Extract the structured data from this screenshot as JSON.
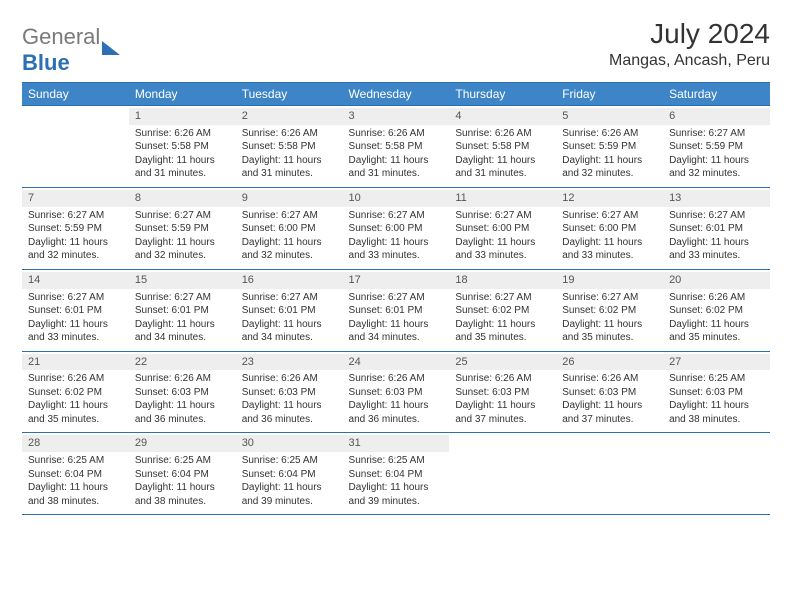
{
  "logo": {
    "part1": "General",
    "part2": "Blue"
  },
  "title": "July 2024",
  "location": "Mangas, Ancash, Peru",
  "colors": {
    "header_bg": "#3d85c6",
    "header_border": "#2d6fb5",
    "daynum_bg": "#eeeeee",
    "text": "#333333",
    "logo_gray": "#7a7a7a",
    "logo_blue": "#2d6fb5"
  },
  "weekdays": [
    "Sunday",
    "Monday",
    "Tuesday",
    "Wednesday",
    "Thursday",
    "Friday",
    "Saturday"
  ],
  "weeks": [
    [
      null,
      {
        "n": 1,
        "sr": "6:26 AM",
        "ss": "5:58 PM",
        "dl": "11 hours and 31 minutes."
      },
      {
        "n": 2,
        "sr": "6:26 AM",
        "ss": "5:58 PM",
        "dl": "11 hours and 31 minutes."
      },
      {
        "n": 3,
        "sr": "6:26 AM",
        "ss": "5:58 PM",
        "dl": "11 hours and 31 minutes."
      },
      {
        "n": 4,
        "sr": "6:26 AM",
        "ss": "5:58 PM",
        "dl": "11 hours and 31 minutes."
      },
      {
        "n": 5,
        "sr": "6:26 AM",
        "ss": "5:59 PM",
        "dl": "11 hours and 32 minutes."
      },
      {
        "n": 6,
        "sr": "6:27 AM",
        "ss": "5:59 PM",
        "dl": "11 hours and 32 minutes."
      }
    ],
    [
      {
        "n": 7,
        "sr": "6:27 AM",
        "ss": "5:59 PM",
        "dl": "11 hours and 32 minutes."
      },
      {
        "n": 8,
        "sr": "6:27 AM",
        "ss": "5:59 PM",
        "dl": "11 hours and 32 minutes."
      },
      {
        "n": 9,
        "sr": "6:27 AM",
        "ss": "6:00 PM",
        "dl": "11 hours and 32 minutes."
      },
      {
        "n": 10,
        "sr": "6:27 AM",
        "ss": "6:00 PM",
        "dl": "11 hours and 33 minutes."
      },
      {
        "n": 11,
        "sr": "6:27 AM",
        "ss": "6:00 PM",
        "dl": "11 hours and 33 minutes."
      },
      {
        "n": 12,
        "sr": "6:27 AM",
        "ss": "6:00 PM",
        "dl": "11 hours and 33 minutes."
      },
      {
        "n": 13,
        "sr": "6:27 AM",
        "ss": "6:01 PM",
        "dl": "11 hours and 33 minutes."
      }
    ],
    [
      {
        "n": 14,
        "sr": "6:27 AM",
        "ss": "6:01 PM",
        "dl": "11 hours and 33 minutes."
      },
      {
        "n": 15,
        "sr": "6:27 AM",
        "ss": "6:01 PM",
        "dl": "11 hours and 34 minutes."
      },
      {
        "n": 16,
        "sr": "6:27 AM",
        "ss": "6:01 PM",
        "dl": "11 hours and 34 minutes."
      },
      {
        "n": 17,
        "sr": "6:27 AM",
        "ss": "6:01 PM",
        "dl": "11 hours and 34 minutes."
      },
      {
        "n": 18,
        "sr": "6:27 AM",
        "ss": "6:02 PM",
        "dl": "11 hours and 35 minutes."
      },
      {
        "n": 19,
        "sr": "6:27 AM",
        "ss": "6:02 PM",
        "dl": "11 hours and 35 minutes."
      },
      {
        "n": 20,
        "sr": "6:26 AM",
        "ss": "6:02 PM",
        "dl": "11 hours and 35 minutes."
      }
    ],
    [
      {
        "n": 21,
        "sr": "6:26 AM",
        "ss": "6:02 PM",
        "dl": "11 hours and 35 minutes."
      },
      {
        "n": 22,
        "sr": "6:26 AM",
        "ss": "6:03 PM",
        "dl": "11 hours and 36 minutes."
      },
      {
        "n": 23,
        "sr": "6:26 AM",
        "ss": "6:03 PM",
        "dl": "11 hours and 36 minutes."
      },
      {
        "n": 24,
        "sr": "6:26 AM",
        "ss": "6:03 PM",
        "dl": "11 hours and 36 minutes."
      },
      {
        "n": 25,
        "sr": "6:26 AM",
        "ss": "6:03 PM",
        "dl": "11 hours and 37 minutes."
      },
      {
        "n": 26,
        "sr": "6:26 AM",
        "ss": "6:03 PM",
        "dl": "11 hours and 37 minutes."
      },
      {
        "n": 27,
        "sr": "6:25 AM",
        "ss": "6:03 PM",
        "dl": "11 hours and 38 minutes."
      }
    ],
    [
      {
        "n": 28,
        "sr": "6:25 AM",
        "ss": "6:04 PM",
        "dl": "11 hours and 38 minutes."
      },
      {
        "n": 29,
        "sr": "6:25 AM",
        "ss": "6:04 PM",
        "dl": "11 hours and 38 minutes."
      },
      {
        "n": 30,
        "sr": "6:25 AM",
        "ss": "6:04 PM",
        "dl": "11 hours and 39 minutes."
      },
      {
        "n": 31,
        "sr": "6:25 AM",
        "ss": "6:04 PM",
        "dl": "11 hours and 39 minutes."
      },
      null,
      null,
      null
    ]
  ],
  "labels": {
    "sunrise": "Sunrise:",
    "sunset": "Sunset:",
    "daylight": "Daylight:"
  }
}
